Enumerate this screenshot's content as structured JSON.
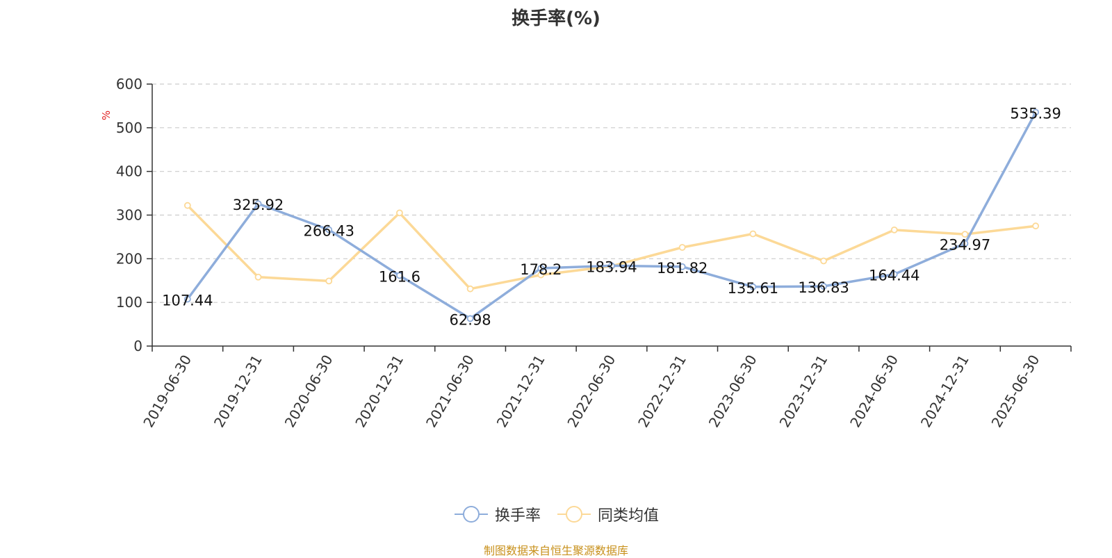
{
  "chart_data": {
    "type": "line",
    "title": "换手率(%)",
    "ylabel": "%",
    "ylim": [
      0,
      600
    ],
    "yticks": [
      "0",
      "100",
      "200",
      "300",
      "400",
      "500",
      "600"
    ],
    "grid": true,
    "legend_position": "bottom-center",
    "categories": [
      "2019-06-30",
      "2019-12-31",
      "2020-06-30",
      "2020-12-31",
      "2021-06-30",
      "2021-12-31",
      "2022-06-30",
      "2022-12-31",
      "2023-06-30",
      "2023-12-31",
      "2024-06-30",
      "2024-12-31",
      "2025-06-30"
    ],
    "series": [
      {
        "name": "换手率",
        "color": "#8eaddb",
        "values": [
          107.44,
          325.92,
          266.43,
          161.6,
          62.98,
          178.2,
          183.94,
          181.82,
          135.61,
          136.83,
          164.44,
          234.97,
          535.39
        ],
        "labels": [
          "107.44",
          "325.92",
          "266.43",
          "161.6",
          "62.98",
          "178.2",
          "183.94",
          "181.82",
          "135.61",
          "136.83",
          "164.44",
          "234.97",
          "535.39"
        ]
      },
      {
        "name": "同类均值",
        "color": "#fcd997",
        "values": [
          322,
          158,
          149,
          305,
          131,
          163,
          183,
          226,
          257,
          195,
          266,
          256,
          275
        ]
      }
    ]
  },
  "footer": {
    "source": "制图数据来自恒生聚源数据库"
  }
}
